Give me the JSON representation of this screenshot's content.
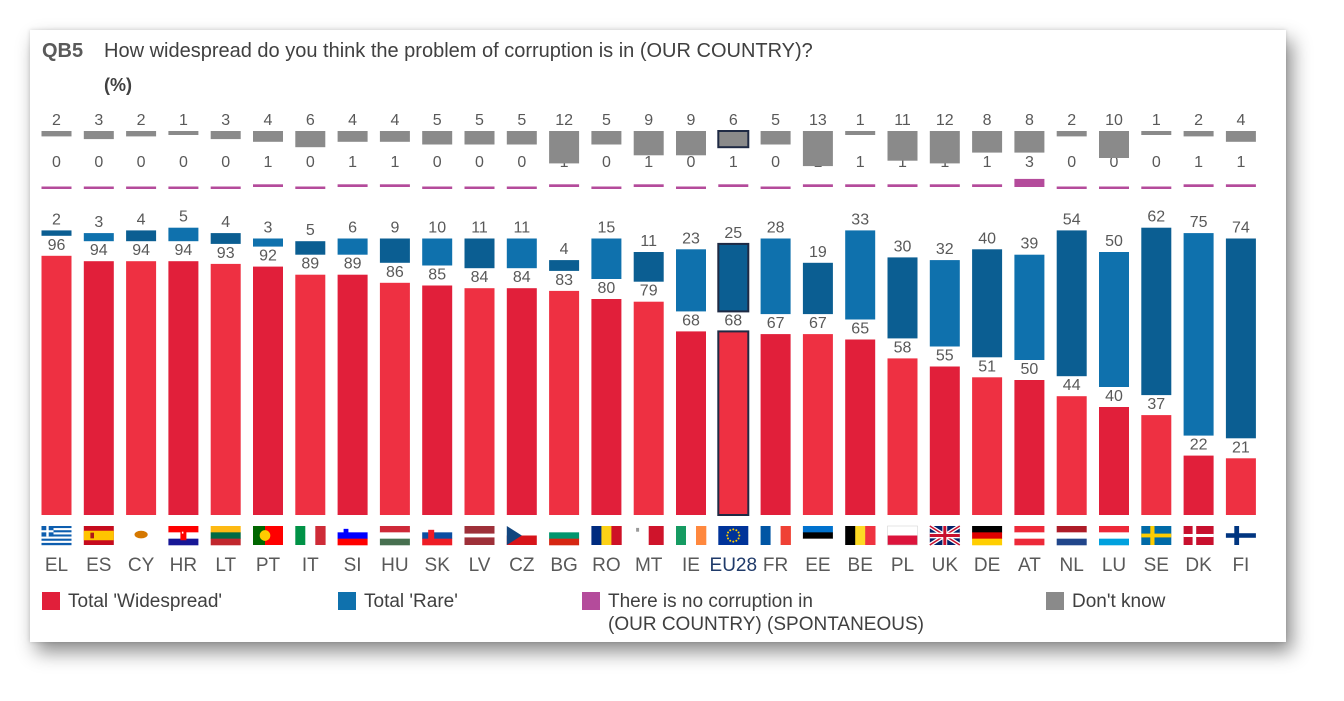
{
  "header": {
    "code": "QB5",
    "question": "How widespread do you think the problem of corruption is in (OUR COUNTRY)?",
    "unit": "(%)"
  },
  "colors": {
    "widespread": "#ee3042",
    "widespread_dark": "#e11f3a",
    "rare": "#0f71ad",
    "rare_dark": "#0b5e92",
    "none": "#b44b9b",
    "dk": "#8a8a8a",
    "eu_outline": "#1f2a44"
  },
  "chart_data": {
    "type": "bar",
    "categories": [
      "EL",
      "ES",
      "CY",
      "HR",
      "LT",
      "PT",
      "IT",
      "SI",
      "HU",
      "SK",
      "LV",
      "CZ",
      "BG",
      "RO",
      "MT",
      "IE",
      "EU28",
      "FR",
      "EE",
      "BE",
      "PL",
      "UK",
      "DE",
      "AT",
      "NL",
      "LU",
      "SE",
      "DK",
      "FI"
    ],
    "flags": [
      "greece",
      "spain",
      "cyprus",
      "croatia",
      "lithuania",
      "portugal",
      "italy",
      "slovenia",
      "hungary",
      "slovakia",
      "latvia",
      "czechia",
      "bulgaria",
      "romania",
      "malta",
      "ireland",
      "eu",
      "france",
      "estonia",
      "belgium",
      "poland",
      "uk",
      "germany",
      "austria",
      "netherlands",
      "luxembourg",
      "sweden",
      "denmark",
      "finland"
    ],
    "series": [
      {
        "name": "Total 'Widespread'",
        "values": [
          96,
          94,
          94,
          94,
          93,
          92,
          89,
          89,
          86,
          85,
          84,
          84,
          83,
          80,
          79,
          68,
          68,
          67,
          67,
          65,
          58,
          55,
          51,
          50,
          44,
          40,
          37,
          22,
          21
        ]
      },
      {
        "name": "Total 'Rare'",
        "values": [
          2,
          3,
          4,
          5,
          4,
          3,
          5,
          6,
          9,
          10,
          11,
          11,
          4,
          15,
          11,
          23,
          25,
          28,
          19,
          33,
          30,
          32,
          40,
          39,
          54,
          50,
          62,
          75,
          74
        ]
      },
      {
        "name": "There is no corruption in (OUR COUNTRY) (SPONTANEOUS)",
        "values": [
          0,
          0,
          0,
          0,
          0,
          1,
          0,
          1,
          1,
          0,
          0,
          0,
          1,
          0,
          1,
          0,
          1,
          0,
          1,
          1,
          1,
          1,
          1,
          3,
          0,
          0,
          0,
          1,
          1
        ]
      },
      {
        "name": "Don't know",
        "values": [
          2,
          3,
          2,
          1,
          3,
          4,
          6,
          4,
          4,
          5,
          5,
          5,
          12,
          5,
          9,
          9,
          6,
          5,
          13,
          1,
          11,
          12,
          8,
          8,
          2,
          10,
          1,
          2,
          4
        ]
      }
    ],
    "legend": [
      {
        "label": "Total 'Widespread'",
        "label2": ""
      },
      {
        "label": "Total 'Rare'",
        "label2": ""
      },
      {
        "label": "There is no corruption in",
        "label2": "(OUR COUNTRY) (SPONTANEOUS)"
      },
      {
        "label": "Don't know",
        "label2": ""
      }
    ],
    "legend_position": "bottom",
    "ylim": [
      0,
      100
    ],
    "grid": false
  }
}
